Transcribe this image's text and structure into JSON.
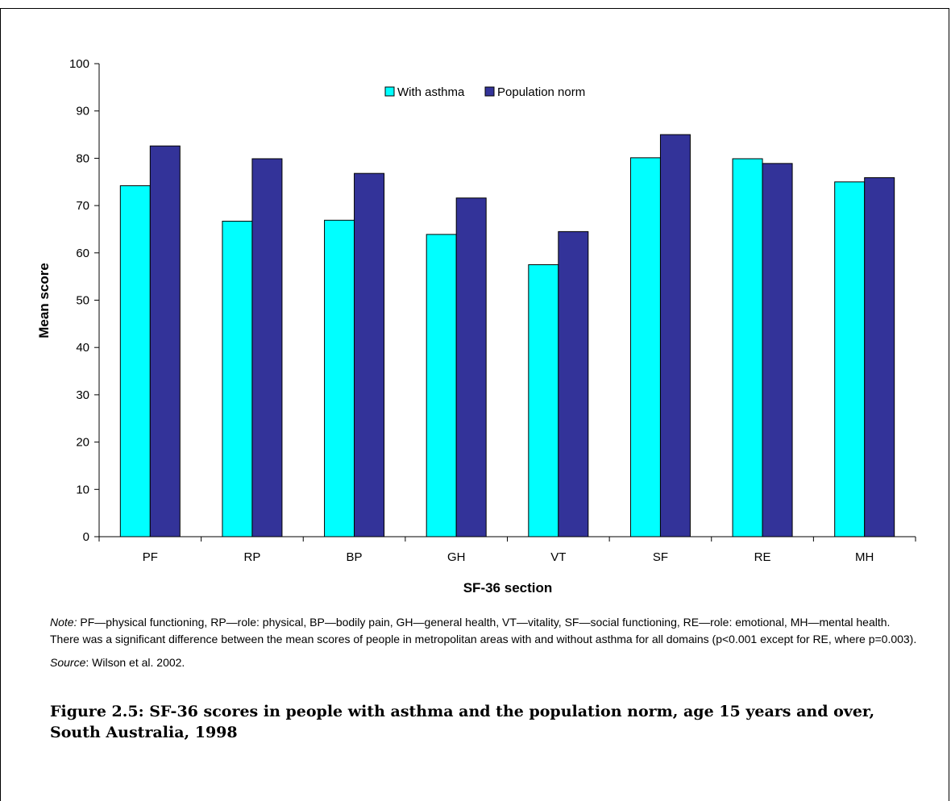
{
  "chart_data": {
    "type": "bar",
    "categories": [
      "PF",
      "RP",
      "BP",
      "GH",
      "VT",
      "SF",
      "RE",
      "MH"
    ],
    "series": [
      {
        "name": "With asthma",
        "color": "#00ffff",
        "values": [
          74.2,
          66.7,
          66.9,
          63.9,
          57.5,
          80.1,
          79.9,
          75.0
        ]
      },
      {
        "name": "Population norm",
        "color": "#333399",
        "values": [
          82.6,
          79.9,
          76.8,
          71.6,
          64.5,
          85.0,
          78.9,
          75.9
        ]
      }
    ],
    "xlabel": "SF-36 section",
    "ylabel": "Mean score",
    "ylim": [
      0,
      100
    ],
    "yticks": [
      0,
      10,
      20,
      30,
      40,
      50,
      60,
      70,
      80,
      90,
      100
    ],
    "legend_position": "top-center",
    "grid": false
  },
  "note": {
    "label": "Note:",
    "text": "PF—physical functioning, RP—role: physical, BP—bodily pain, GH—general health, VT—vitality, SF—social functioning, RE—role: emotional, MH—mental health. There was a significant difference between the mean scores of people in metropolitan areas with and without asthma for all domains (p<0.001 except for RE, where p=0.003)."
  },
  "source": {
    "label": "Source",
    "text": ": Wilson et al. 2002."
  },
  "caption": "Figure 2.5: SF-36 scores in people with asthma and the population norm, age 15 years and over, South Australia, 1998"
}
